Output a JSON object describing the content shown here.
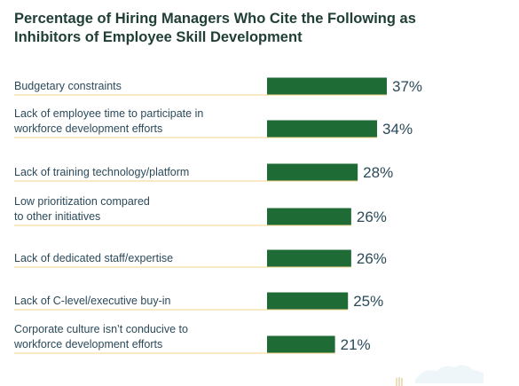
{
  "chart_data": {
    "type": "bar",
    "orientation": "horizontal",
    "title": "Percentage of Hiring Managers Who Cite the Following as\nInhibitors of Employee Skill Development",
    "categories": [
      [
        "Budgetary constraints"
      ],
      [
        "Lack of employee time to participate in",
        "workforce development efforts"
      ],
      [
        "Lack of training technology/platform"
      ],
      [
        "Low prioritization compared",
        "to other initiatives"
      ],
      [
        "Lack of dedicated staff/expertise"
      ],
      [
        "Lack of C-level/executive buy-in"
      ],
      [
        "Corporate culture isn’t conducive to",
        "workforce development efforts"
      ]
    ],
    "values": [
      37,
      34,
      28,
      26,
      26,
      25,
      21
    ],
    "value_labels": [
      "37%",
      "34%",
      "28%",
      "26%",
      "26%",
      "25%",
      "21%"
    ],
    "unit": "%",
    "xlim": [
      0,
      37
    ],
    "grid": false,
    "legend": "none",
    "colors": {
      "bar": "#1e6b35",
      "separator": "#f3d38a",
      "text": "#2b4a5a",
      "title": "#1f3e36"
    }
  }
}
